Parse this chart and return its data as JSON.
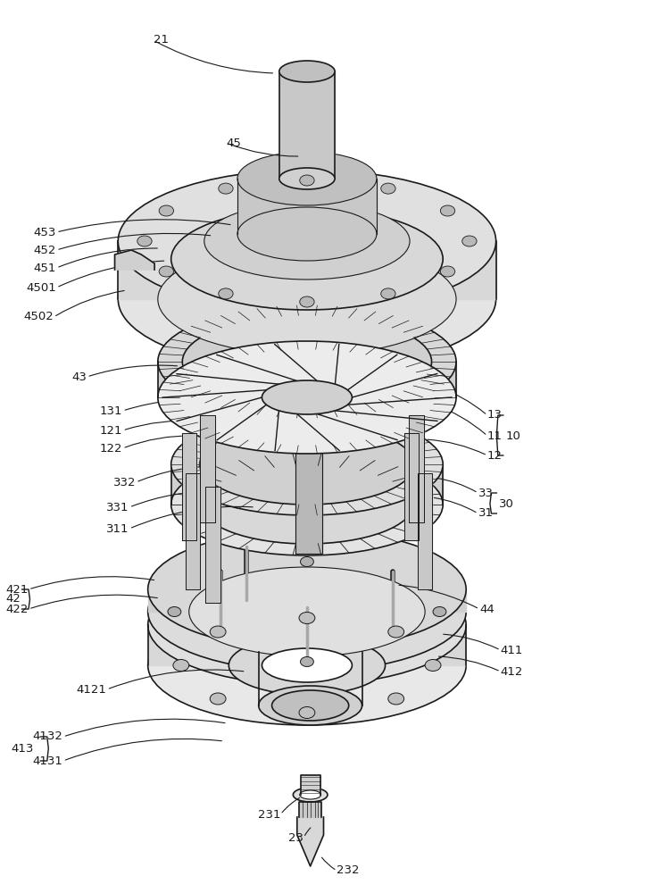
{
  "bg_color": "#ffffff",
  "line_color": "#1a1a1a",
  "label_color": "#1a1a1a",
  "figsize": [
    7.45,
    10.0
  ],
  "dpi": 100
}
